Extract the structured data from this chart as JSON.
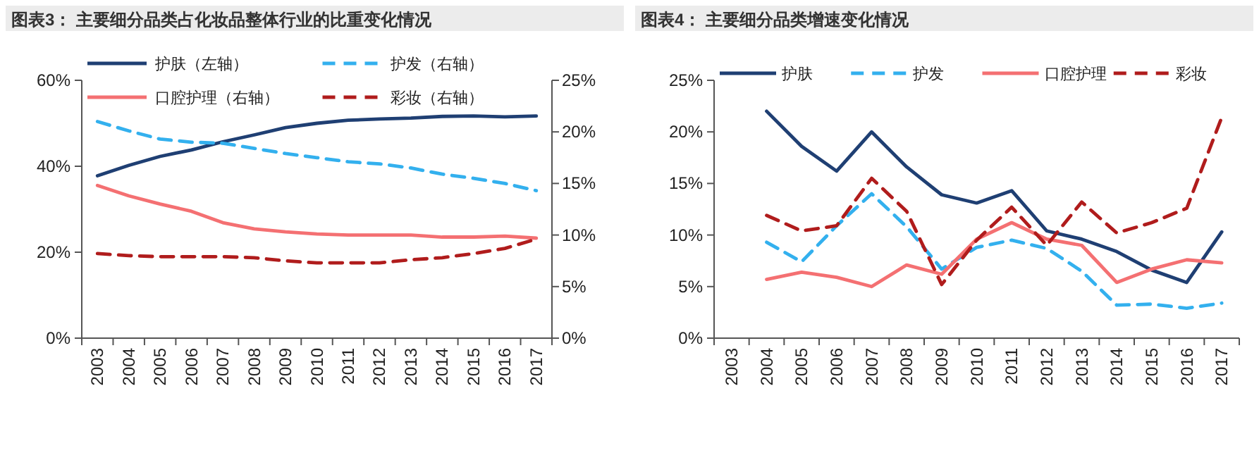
{
  "chart_data": [
    {
      "type": "line",
      "title": "图表3：  主要细分品类占化妆品整体行业的比重变化情况",
      "categories": [
        "2003",
        "2004",
        "2005",
        "2006",
        "2007",
        "2008",
        "2009",
        "2010",
        "2011",
        "2012",
        "2013",
        "2014",
        "2015",
        "2016",
        "2017"
      ],
      "ylim": [
        0,
        60
      ],
      "yticks": [
        {
          "value": 0,
          "label": "0%"
        },
        {
          "value": 20,
          "label": "20%"
        },
        {
          "value": 40,
          "label": "40%"
        },
        {
          "value": 60,
          "label": "60%"
        }
      ],
      "y2lim": [
        0,
        25
      ],
      "y2ticks": [
        {
          "value": 0,
          "label": "0%"
        },
        {
          "value": 5,
          "label": "5%"
        },
        {
          "value": 10,
          "label": "10%"
        },
        {
          "value": 15,
          "label": "15%"
        },
        {
          "value": 20,
          "label": "20%"
        },
        {
          "value": 25,
          "label": "25%"
        }
      ],
      "legend": "top",
      "grid": false,
      "series": [
        {
          "name": "护肤（左轴）",
          "color": "#1f3f73",
          "line_style": "solid",
          "values": [
            37.8,
            40.2,
            42.3,
            43.8,
            45.7,
            47.3,
            49.0,
            50.0,
            50.7,
            51.0,
            51.2,
            51.6,
            51.7,
            51.5,
            51.7
          ]
        },
        {
          "name": "护发（右轴）",
          "color": "#33b0ee",
          "line_style": "dashed",
          "axis": "y2",
          "values": [
            21.0,
            20.1,
            19.3,
            19.0,
            18.9,
            18.4,
            17.9,
            17.5,
            17.1,
            16.9,
            16.5,
            15.9,
            15.5,
            15.0,
            14.3
          ]
        },
        {
          "name": "口腔护理（右轴）",
          "color": "#f47072",
          "line_style": "solid",
          "axis": "y2",
          "values": [
            14.8,
            13.8,
            13.0,
            12.3,
            11.2,
            10.6,
            10.3,
            10.1,
            10.0,
            10.0,
            10.0,
            9.8,
            9.8,
            9.9,
            9.7
          ]
        },
        {
          "name": "彩妆（右轴）",
          "color": "#b01c1c",
          "line_style": "dashed",
          "axis": "y2",
          "values": [
            8.2,
            8.0,
            7.9,
            7.9,
            7.9,
            7.8,
            7.5,
            7.3,
            7.3,
            7.3,
            7.6,
            7.8,
            8.2,
            8.7,
            9.6
          ]
        }
      ]
    },
    {
      "type": "line",
      "title": "图表4：  主要细分品类增速变化情况",
      "categories": [
        "2003",
        "2004",
        "2005",
        "2006",
        "2007",
        "2008",
        "2009",
        "2010",
        "2011",
        "2012",
        "2013",
        "2014",
        "2015",
        "2016",
        "2017"
      ],
      "ylim": [
        0,
        25
      ],
      "yticks": [
        {
          "value": 0,
          "label": "0%"
        },
        {
          "value": 5,
          "label": "5%"
        },
        {
          "value": 10,
          "label": "10%"
        },
        {
          "value": 15,
          "label": "15%"
        },
        {
          "value": 20,
          "label": "20%"
        },
        {
          "value": 25,
          "label": "25%"
        }
      ],
      "legend": "top",
      "grid": false,
      "series": [
        {
          "name": "护肤",
          "color": "#1f3f73",
          "line_style": "solid",
          "values": [
            null,
            22.0,
            18.6,
            16.2,
            20.0,
            16.6,
            13.9,
            13.1,
            14.3,
            10.4,
            9.6,
            8.4,
            6.6,
            5.4,
            10.3
          ]
        },
        {
          "name": "护发",
          "color": "#33b0ee",
          "line_style": "dashed",
          "values": [
            null,
            9.3,
            7.4,
            10.9,
            14.0,
            10.8,
            6.7,
            8.8,
            9.5,
            8.7,
            6.5,
            3.2,
            3.3,
            2.9,
            3.4
          ]
        },
        {
          "name": "口腔护理",
          "color": "#f47072",
          "line_style": "solid",
          "values": [
            null,
            5.7,
            6.4,
            5.9,
            5.0,
            7.1,
            6.2,
            9.6,
            11.2,
            9.6,
            9.0,
            5.4,
            6.7,
            7.6,
            7.3
          ]
        },
        {
          "name": "彩妆",
          "color": "#b01c1c",
          "line_style": "dashed",
          "values": [
            null,
            11.9,
            10.4,
            10.9,
            15.5,
            12.3,
            5.2,
            9.5,
            12.7,
            9.0,
            13.2,
            10.2,
            11.2,
            12.6,
            21.4
          ]
        }
      ]
    }
  ]
}
